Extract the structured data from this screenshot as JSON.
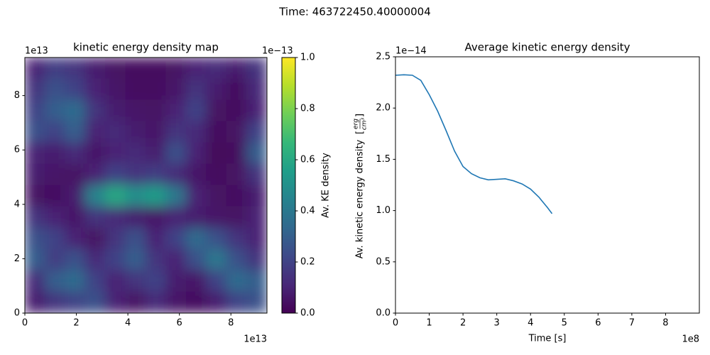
{
  "suptitle": "Time: 463722450.40000004",
  "chart_data": [
    {
      "type": "heatmap",
      "title": "kinetic energy density map",
      "xlim": [
        0,
        9.4
      ],
      "ylim": [
        0,
        9.4
      ],
      "xticks": [
        0,
        2,
        4,
        6,
        8
      ],
      "yticks": [
        0,
        2,
        4,
        6,
        8
      ],
      "x_offset_label": "1e13",
      "y_offset_label": "1e13",
      "colormap": "viridis",
      "values": [
        [
          0.1,
          0.18,
          0.15,
          0.08,
          0.05,
          0.03,
          0.03,
          0.05,
          0.1,
          0.12,
          0.08,
          0.15
        ],
        [
          0.15,
          0.25,
          0.2,
          0.1,
          0.06,
          0.04,
          0.04,
          0.06,
          0.15,
          0.08,
          0.03,
          0.12
        ],
        [
          0.2,
          0.3,
          0.35,
          0.15,
          0.08,
          0.06,
          0.05,
          0.1,
          0.2,
          0.05,
          0.03,
          0.1
        ],
        [
          0.25,
          0.2,
          0.3,
          0.1,
          0.12,
          0.08,
          0.06,
          0.15,
          0.12,
          0.03,
          0.05,
          0.2
        ],
        [
          0.1,
          0.08,
          0.12,
          0.06,
          0.1,
          0.12,
          0.08,
          0.25,
          0.1,
          0.02,
          0.03,
          0.3
        ],
        [
          0.08,
          0.06,
          0.05,
          0.1,
          0.2,
          0.15,
          0.18,
          0.12,
          0.06,
          0.03,
          0.05,
          0.15
        ],
        [
          0.05,
          0.04,
          0.08,
          0.45,
          0.6,
          0.5,
          0.55,
          0.4,
          0.1,
          0.05,
          0.04,
          0.08
        ],
        [
          0.15,
          0.1,
          0.06,
          0.15,
          0.12,
          0.08,
          0.06,
          0.1,
          0.08,
          0.06,
          0.05,
          0.1
        ],
        [
          0.25,
          0.2,
          0.1,
          0.05,
          0.15,
          0.25,
          0.1,
          0.2,
          0.35,
          0.25,
          0.15,
          0.1
        ],
        [
          0.3,
          0.18,
          0.25,
          0.12,
          0.2,
          0.3,
          0.15,
          0.1,
          0.25,
          0.4,
          0.25,
          0.15
        ],
        [
          0.12,
          0.3,
          0.35,
          0.2,
          0.1,
          0.15,
          0.2,
          0.08,
          0.06,
          0.2,
          0.35,
          0.3
        ],
        [
          0.08,
          0.15,
          0.2,
          0.25,
          0.1,
          0.05,
          0.12,
          0.06,
          0.03,
          0.08,
          0.2,
          0.25
        ]
      ],
      "colorbar": {
        "label": "Av. KE density",
        "lim": [
          0,
          1
        ],
        "offset_label": "1e−13",
        "ticks": [
          {
            "value": 0,
            "label": "0.0"
          },
          {
            "value": 0.2,
            "label": "0.2"
          },
          {
            "value": 0.4,
            "label": "0.4"
          },
          {
            "value": 0.6,
            "label": "0.6"
          },
          {
            "value": 0.8,
            "label": "0.8"
          },
          {
            "value": 1,
            "label": "1.0"
          }
        ]
      }
    },
    {
      "type": "line",
      "title": "Average kinetic energy density",
      "xlabel": "Time [s]",
      "ylabel": "Av. kinetic energy density",
      "ylabel_unit_numerator": "erg",
      "ylabel_unit_denominator": "cm³",
      "x_offset_label": "1e8",
      "y_offset_label": "1e−14",
      "color": "#1f77b4",
      "xlim": [
        0,
        9
      ],
      "ylim": [
        0,
        2.5
      ],
      "xticks": [
        0,
        1,
        2,
        3,
        4,
        5,
        6,
        7,
        8
      ],
      "yticks": [
        {
          "value": 0,
          "label": "0.0"
        },
        {
          "value": 0.5,
          "label": "0.5"
        },
        {
          "value": 1,
          "label": "1.0"
        },
        {
          "value": 1.5,
          "label": "1.5"
        },
        {
          "value": 2,
          "label": "2.0"
        },
        {
          "value": 2.5,
          "label": "2.5"
        }
      ],
      "x": [
        0,
        0.25,
        0.5,
        0.75,
        1,
        1.25,
        1.5,
        1.75,
        2,
        2.25,
        2.5,
        2.75,
        3,
        3.25,
        3.5,
        3.75,
        4,
        4.25,
        4.5,
        4.637
      ],
      "values": [
        2.32,
        2.325,
        2.32,
        2.27,
        2.13,
        1.97,
        1.78,
        1.58,
        1.43,
        1.36,
        1.32,
        1.3,
        1.305,
        1.31,
        1.29,
        1.26,
        1.21,
        1.13,
        1.03,
        0.97
      ]
    }
  ]
}
